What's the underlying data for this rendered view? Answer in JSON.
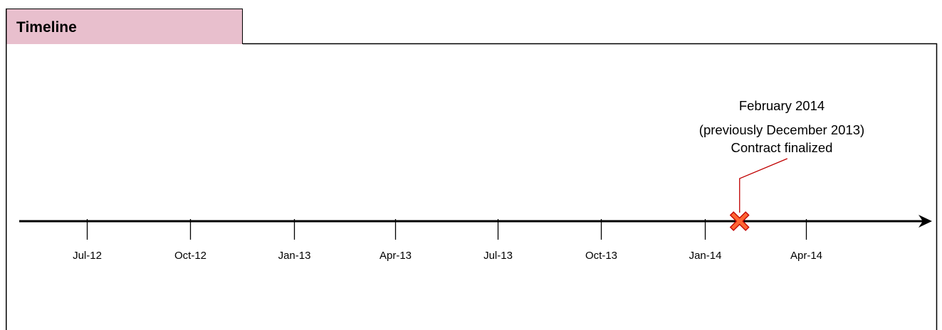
{
  "panel": {
    "title": "Timeline"
  },
  "axis": {
    "ticks": [
      {
        "label": "Jul-12",
        "date": "2012-07-01"
      },
      {
        "label": "Oct-12",
        "date": "2012-10-01"
      },
      {
        "label": "Jan-13",
        "date": "2013-01-01"
      },
      {
        "label": "Apr-13",
        "date": "2013-04-01"
      },
      {
        "label": "Jul-13",
        "date": "2013-07-01"
      },
      {
        "label": "Oct-13",
        "date": "2013-10-01"
      },
      {
        "label": "Jan-14",
        "date": "2014-01-01"
      },
      {
        "label": "Apr-14",
        "date": "2014-04-01"
      }
    ]
  },
  "milestone": {
    "date": "2014-02-01",
    "marker_icon": "x-marker-icon",
    "lines": [
      "February 2014",
      "(previously December 2013)",
      "Contract finalized"
    ]
  },
  "colors": {
    "tab_fill": "#e8bfcd",
    "marker_fill": "#ff6633",
    "marker_stroke": "#c00000",
    "leader_line": "#c00000",
    "axis": "#000000"
  }
}
